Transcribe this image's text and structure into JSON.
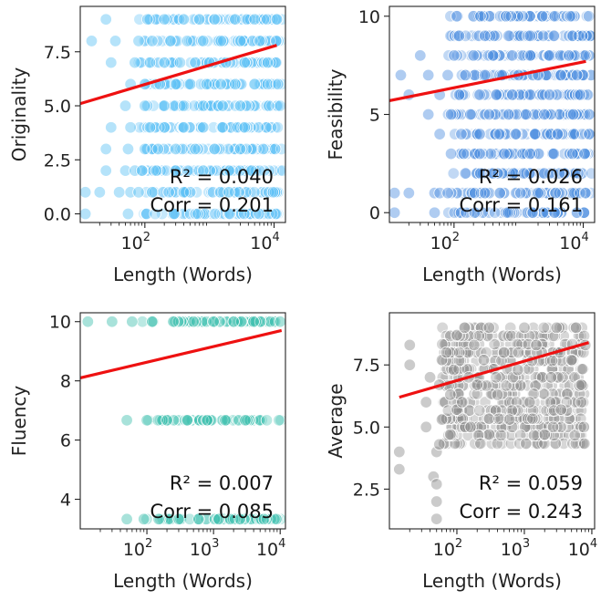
{
  "chart_data": [
    {
      "type": "scatter",
      "xlabel": "Length (Words)",
      "ylabel": "Originality",
      "xscale": "log",
      "xlim": [
        10,
        15000
      ],
      "ylim": [
        -0.4,
        9.6
      ],
      "xticks": [
        {
          "v": 100,
          "base": "10",
          "exp": "2"
        },
        {
          "v": 10000,
          "base": "10",
          "exp": "4"
        }
      ],
      "yticks": [
        {
          "v": 0,
          "label": "0.0"
        },
        {
          "v": 2.5,
          "label": "2.5"
        },
        {
          "v": 5,
          "label": "5.0"
        },
        {
          "v": 7.5,
          "label": "7.5"
        }
      ],
      "color": "#5bc0f5",
      "levels": [
        0,
        1,
        2,
        3,
        4,
        5,
        6,
        7,
        8,
        9
      ],
      "points": [
        [
          12,
          0
        ],
        [
          55,
          0
        ],
        [
          12,
          1
        ],
        [
          20,
          1
        ],
        [
          40,
          1
        ],
        [
          60,
          1
        ],
        [
          80,
          1
        ],
        [
          130,
          1
        ],
        [
          400,
          1
        ],
        [
          2000,
          1
        ],
        [
          25,
          2
        ],
        [
          50,
          2
        ],
        [
          70,
          2
        ],
        [
          90,
          2
        ],
        [
          150,
          2
        ],
        [
          300,
          2
        ],
        [
          800,
          2
        ],
        [
          2000,
          2
        ],
        [
          4500,
          2
        ],
        [
          25,
          3
        ],
        [
          55,
          3
        ],
        [
          100,
          3
        ],
        [
          160,
          3
        ],
        [
          300,
          3
        ],
        [
          600,
          3
        ],
        [
          1200,
          3
        ],
        [
          3000,
          3
        ],
        [
          30,
          4
        ],
        [
          60,
          4
        ],
        [
          120,
          4
        ],
        [
          200,
          4
        ],
        [
          400,
          4
        ],
        [
          800,
          4
        ],
        [
          1600,
          4
        ],
        [
          3500,
          4
        ],
        [
          50,
          5
        ],
        [
          100,
          5
        ],
        [
          200,
          5
        ],
        [
          400,
          5
        ],
        [
          800,
          5
        ],
        [
          1600,
          5
        ],
        [
          3000,
          5
        ],
        [
          60,
          6
        ],
        [
          100,
          6
        ],
        [
          170,
          6
        ],
        [
          300,
          6
        ],
        [
          500,
          6
        ],
        [
          900,
          6
        ],
        [
          1500,
          6
        ],
        [
          2500,
          6
        ],
        [
          5000,
          6
        ],
        [
          30,
          7
        ],
        [
          70,
          7
        ],
        [
          120,
          7
        ],
        [
          200,
          7
        ],
        [
          350,
          7
        ],
        [
          600,
          7
        ],
        [
          1000,
          7
        ],
        [
          1800,
          7
        ],
        [
          3500,
          7
        ],
        [
          8000,
          7
        ],
        [
          15,
          8
        ],
        [
          35,
          8
        ],
        [
          80,
          8
        ],
        [
          130,
          8
        ],
        [
          250,
          8
        ],
        [
          450,
          8
        ],
        [
          800,
          8
        ],
        [
          1500,
          8
        ],
        [
          3000,
          8
        ],
        [
          6000,
          8
        ],
        [
          25,
          9
        ],
        [
          110,
          9
        ],
        [
          200,
          9
        ],
        [
          400,
          9
        ],
        [
          700,
          9
        ],
        [
          1200,
          9
        ],
        [
          2500,
          9
        ],
        [
          5000,
          9
        ],
        [
          11000,
          9
        ]
      ],
      "fit": {
        "x": [
          10,
          11000
        ],
        "y": [
          5.1,
          7.8
        ]
      },
      "r2": "R² = 0.040",
      "corr": "Corr = 0.201"
    },
    {
      "type": "scatter",
      "xlabel": "Length (Words)",
      "ylabel": "Feasibility",
      "xscale": "log",
      "xlim": [
        10,
        15000
      ],
      "ylim": [
        -0.5,
        10.5
      ],
      "xticks": [
        {
          "v": 100,
          "base": "10",
          "exp": "2"
        },
        {
          "v": 10000,
          "base": "10",
          "exp": "4"
        }
      ],
      "yticks": [
        {
          "v": 0,
          "label": "0"
        },
        {
          "v": 5,
          "label": "5"
        },
        {
          "v": 10,
          "label": "10"
        }
      ],
      "color": "#4d8fe0",
      "levels": [
        0,
        1,
        2,
        3,
        4,
        5,
        6,
        7,
        8,
        9,
        10
      ],
      "points": [
        [
          12,
          0
        ],
        [
          50,
          0
        ],
        [
          12,
          1
        ],
        [
          20,
          1
        ],
        [
          50,
          1
        ],
        [
          60,
          1
        ],
        [
          80,
          1
        ],
        [
          300,
          1
        ],
        [
          2000,
          1
        ],
        [
          150,
          2
        ],
        [
          400,
          2
        ],
        [
          1200,
          2
        ],
        [
          2500,
          2
        ],
        [
          90,
          3
        ],
        [
          250,
          3
        ],
        [
          600,
          3
        ],
        [
          1500,
          3
        ],
        [
          3500,
          3
        ],
        [
          60,
          4
        ],
        [
          130,
          4
        ],
        [
          250,
          4
        ],
        [
          500,
          4
        ],
        [
          900,
          4
        ],
        [
          1800,
          4
        ],
        [
          4000,
          4
        ],
        [
          40,
          5
        ],
        [
          90,
          5
        ],
        [
          180,
          5
        ],
        [
          350,
          5
        ],
        [
          700,
          5
        ],
        [
          1300,
          5
        ],
        [
          2500,
          5
        ],
        [
          7000,
          5
        ],
        [
          20,
          6
        ],
        [
          60,
          6
        ],
        [
          120,
          6
        ],
        [
          250,
          6
        ],
        [
          450,
          6
        ],
        [
          800,
          6
        ],
        [
          1500,
          6
        ],
        [
          3000,
          6
        ],
        [
          9000,
          6
        ],
        [
          15,
          7
        ],
        [
          40,
          7
        ],
        [
          80,
          7
        ],
        [
          150,
          7
        ],
        [
          300,
          7
        ],
        [
          550,
          7
        ],
        [
          1000,
          7
        ],
        [
          2000,
          7
        ],
        [
          4500,
          7
        ],
        [
          8000,
          7
        ],
        [
          30,
          8
        ],
        [
          100,
          8
        ],
        [
          200,
          8
        ],
        [
          400,
          8
        ],
        [
          800,
          8
        ],
        [
          1500,
          8
        ],
        [
          3000,
          8
        ],
        [
          6000,
          8
        ],
        [
          120,
          9
        ],
        [
          300,
          9
        ],
        [
          700,
          9
        ],
        [
          1500,
          9
        ],
        [
          3500,
          9
        ],
        [
          110,
          10
        ]
      ],
      "fit": {
        "x": [
          10,
          11000
        ],
        "y": [
          5.7,
          7.7
        ]
      },
      "r2": "R² = 0.026",
      "corr": "Corr = 0.161"
    },
    {
      "type": "scatter",
      "xlabel": "Length (Words)",
      "ylabel": "Fluency",
      "xscale": "log",
      "xlim": [
        10,
        12000
      ],
      "ylim": [
        3.0,
        10.3
      ],
      "xticks": [
        {
          "v": 100,
          "base": "10",
          "exp": "2"
        },
        {
          "v": 1000,
          "base": "10",
          "exp": "3"
        },
        {
          "v": 10000,
          "base": "10",
          "exp": "4"
        }
      ],
      "yticks": [
        {
          "v": 4,
          "label": "4"
        },
        {
          "v": 6,
          "label": "6"
        },
        {
          "v": 8,
          "label": "8"
        },
        {
          "v": 10,
          "label": "10"
        }
      ],
      "color": "#3dbfae",
      "levels": [
        3.33,
        6.67,
        10
      ],
      "points": [
        [
          50,
          3.33
        ],
        [
          90,
          3.33
        ],
        [
          150,
          3.33
        ],
        [
          300,
          3.33
        ],
        [
          600,
          3.33
        ],
        [
          1200,
          3.33
        ],
        [
          2500,
          3.33
        ],
        [
          50,
          6.67
        ],
        [
          100,
          6.67
        ],
        [
          200,
          6.67
        ],
        [
          400,
          6.67
        ],
        [
          800,
          6.67
        ],
        [
          1500,
          6.67
        ],
        [
          3000,
          6.67
        ],
        [
          13,
          10
        ],
        [
          30,
          10
        ],
        [
          60,
          10
        ],
        [
          120,
          10
        ],
        [
          250,
          10
        ],
        [
          500,
          10
        ],
        [
          1000,
          10
        ],
        [
          2000,
          10
        ],
        [
          4000,
          10
        ],
        [
          10000,
          10
        ]
      ],
      "fit": {
        "x": [
          10,
          10500
        ],
        "y": [
          8.1,
          9.7
        ]
      },
      "r2": "R² = 0.007",
      "corr": "Corr = 0.085"
    },
    {
      "type": "scatter",
      "xlabel": "Length (Words)",
      "ylabel": "Average",
      "xscale": "log",
      "xlim": [
        10,
        11000
      ],
      "ylim": [
        0.9,
        9.6
      ],
      "xticks": [
        {
          "v": 100,
          "base": "10",
          "exp": "2"
        },
        {
          "v": 1000,
          "base": "10",
          "exp": "3"
        },
        {
          "v": 10000,
          "base": "10",
          "exp": "4"
        }
      ],
      "yticks": [
        {
          "v": 2.5,
          "label": "2.5"
        },
        {
          "v": 5,
          "label": "5.0"
        },
        {
          "v": 7.5,
          "label": "7.5"
        }
      ],
      "color": "#8c8c8c",
      "levels": [],
      "points": [
        [
          14,
          3.3
        ],
        [
          14,
          4.0
        ],
        [
          20,
          7.5
        ],
        [
          20,
          8.3
        ],
        [
          35,
          6.0
        ],
        [
          35,
          5.0
        ],
        [
          40,
          7.0
        ],
        [
          45,
          3.0
        ],
        [
          50,
          1.3
        ],
        [
          50,
          2.0
        ],
        [
          50,
          2.7
        ],
        [
          50,
          4.0
        ],
        [
          55,
          4.3
        ],
        [
          55,
          6.7
        ],
        [
          60,
          5.3
        ],
        [
          60,
          7.7
        ],
        [
          70,
          8.0
        ],
        [
          80,
          6.3
        ],
        [
          80,
          4.7
        ],
        [
          90,
          7.3
        ],
        [
          100,
          8.7
        ],
        [
          100,
          5.7
        ],
        [
          120,
          6.0
        ],
        [
          130,
          9.0
        ],
        [
          150,
          7.0
        ],
        [
          160,
          5.0
        ],
        [
          180,
          8.3
        ],
        [
          200,
          6.7
        ],
        [
          250,
          7.7
        ],
        [
          300,
          9.0
        ],
        [
          300,
          4.7
        ],
        [
          400,
          6.3
        ],
        [
          500,
          8.0
        ],
        [
          600,
          5.3
        ],
        [
          800,
          7.3
        ],
        [
          1000,
          9.0
        ],
        [
          1200,
          6.0
        ],
        [
          1500,
          8.3
        ],
        [
          2000,
          4.7
        ],
        [
          2500,
          7.0
        ],
        [
          3000,
          9.0
        ],
        [
          3500,
          5.7
        ],
        [
          5000,
          7.7
        ],
        [
          7000,
          6.7
        ],
        [
          8000,
          8.3
        ]
      ],
      "fit": {
        "x": [
          14,
          9000
        ],
        "y": [
          6.2,
          8.4
        ]
      },
      "r2": "R² = 0.059",
      "corr": "Corr = 0.243"
    }
  ]
}
